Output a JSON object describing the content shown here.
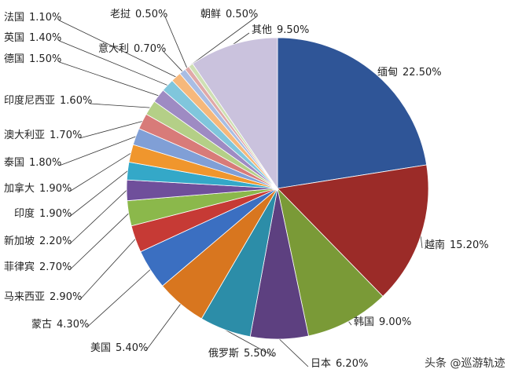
{
  "chart_data": {
    "type": "pie",
    "categories": [
      "缅甸",
      "越南",
      "韩国",
      "日本",
      "俄罗斯",
      "美国",
      "蒙古",
      "马来西亚",
      "菲律宾",
      "新加坡",
      "印度",
      "加拿大",
      "泰国",
      "澳大利亚",
      "印度尼西亚",
      "德国",
      "英国",
      "法国",
      "意大利",
      "老挝",
      "朝鲜",
      "其他"
    ],
    "values": [
      22.5,
      15.2,
      9.0,
      6.2,
      5.5,
      5.4,
      4.3,
      2.9,
      2.7,
      2.2,
      1.9,
      1.9,
      1.8,
      1.7,
      1.6,
      1.5,
      1.4,
      1.1,
      0.7,
      0.5,
      0.5,
      9.5
    ],
    "value_labels": [
      "22.50%",
      "15.20%",
      "9.00%",
      "6.20%",
      "5.50%",
      "5.40%",
      "4.30%",
      "2.90%",
      "2.70%",
      "2.20%",
      "1.90%",
      "1.90%",
      "1.80%",
      "1.70%",
      "1.60%",
      "1.50%",
      "1.40%",
      "1.10%",
      "0.70%",
      "0.50%",
      "0.50%",
      "9.50%"
    ],
    "colors": [
      "#2f5597",
      "#9b2b28",
      "#7a9a37",
      "#5d4080",
      "#2c8da8",
      "#d8761f",
      "#3b6fc1",
      "#c63a35",
      "#8bb84b",
      "#6f4f9b",
      "#34a8c8",
      "#f0962d",
      "#809fd6",
      "#d87b79",
      "#b4cf87",
      "#9e8bc3",
      "#80c6dc",
      "#f6b87b",
      "#a9bde3",
      "#e0a9a8",
      "#cfe0b4",
      "#cac2dd"
    ],
    "watermark": "头条 @巡游轨迹"
  }
}
